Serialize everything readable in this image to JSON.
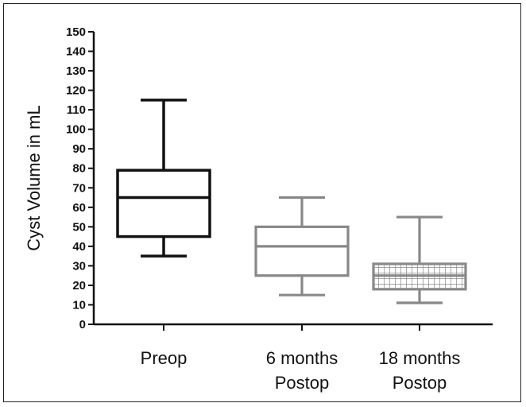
{
  "chart_data": {
    "type": "box",
    "title": "",
    "xlabel": "",
    "ylabel": "Cyst Volume in mL",
    "ylim": [
      0,
      150
    ],
    "yticks": [
      0,
      10,
      20,
      30,
      40,
      50,
      60,
      70,
      80,
      90,
      100,
      110,
      120,
      130,
      140,
      150
    ],
    "categories": [
      {
        "lines": [
          "Preop"
        ]
      },
      {
        "lines": [
          "6 months",
          "Postop"
        ]
      },
      {
        "lines": [
          "18 months",
          "Postop"
        ]
      }
    ],
    "series": [
      {
        "category": "Preop",
        "min": 35,
        "q1": 45,
        "median": 65,
        "q3": 79,
        "max": 115,
        "color": "#111111",
        "fill": "none"
      },
      {
        "category": "6 months Postop",
        "min": 15,
        "q1": 25,
        "median": 40,
        "q3": 50,
        "max": 65,
        "color": "#888888",
        "fill": "none"
      },
      {
        "category": "18 months Postop",
        "min": 11,
        "q1": 18,
        "median": 25,
        "q3": 31,
        "max": 55,
        "color": "#888888",
        "fill": "grid-hatch"
      }
    ],
    "grid": false,
    "legend": "none"
  }
}
